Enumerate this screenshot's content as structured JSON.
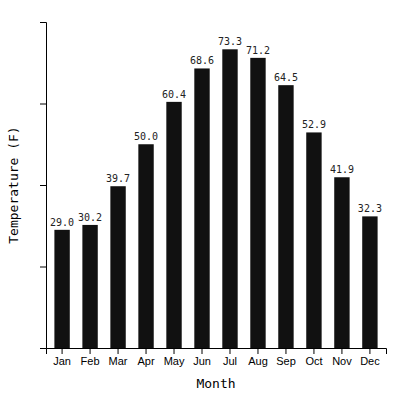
{
  "chart_data": {
    "type": "bar",
    "categories": [
      "Jan",
      "Feb",
      "Mar",
      "Apr",
      "May",
      "Jun",
      "Jul",
      "Aug",
      "Sep",
      "Oct",
      "Nov",
      "Dec"
    ],
    "values": [
      29.0,
      30.2,
      39.7,
      50.0,
      60.4,
      68.6,
      73.3,
      71.2,
      64.5,
      52.9,
      41.9,
      32.3
    ],
    "value_labels": [
      "29.0",
      "30.2",
      "39.7",
      "50.0",
      "60.4",
      "68.6",
      "73.3",
      "71.2",
      "64.5",
      "52.9",
      "41.9",
      "32.3"
    ],
    "color": "#111111",
    "xlabel": "Month",
    "ylabel": "Temperature (F)",
    "ylim": [
      0,
      80
    ],
    "yticks": [
      0,
      20,
      40,
      60,
      80
    ],
    "data_labels": true,
    "tick_labels": "x"
  }
}
